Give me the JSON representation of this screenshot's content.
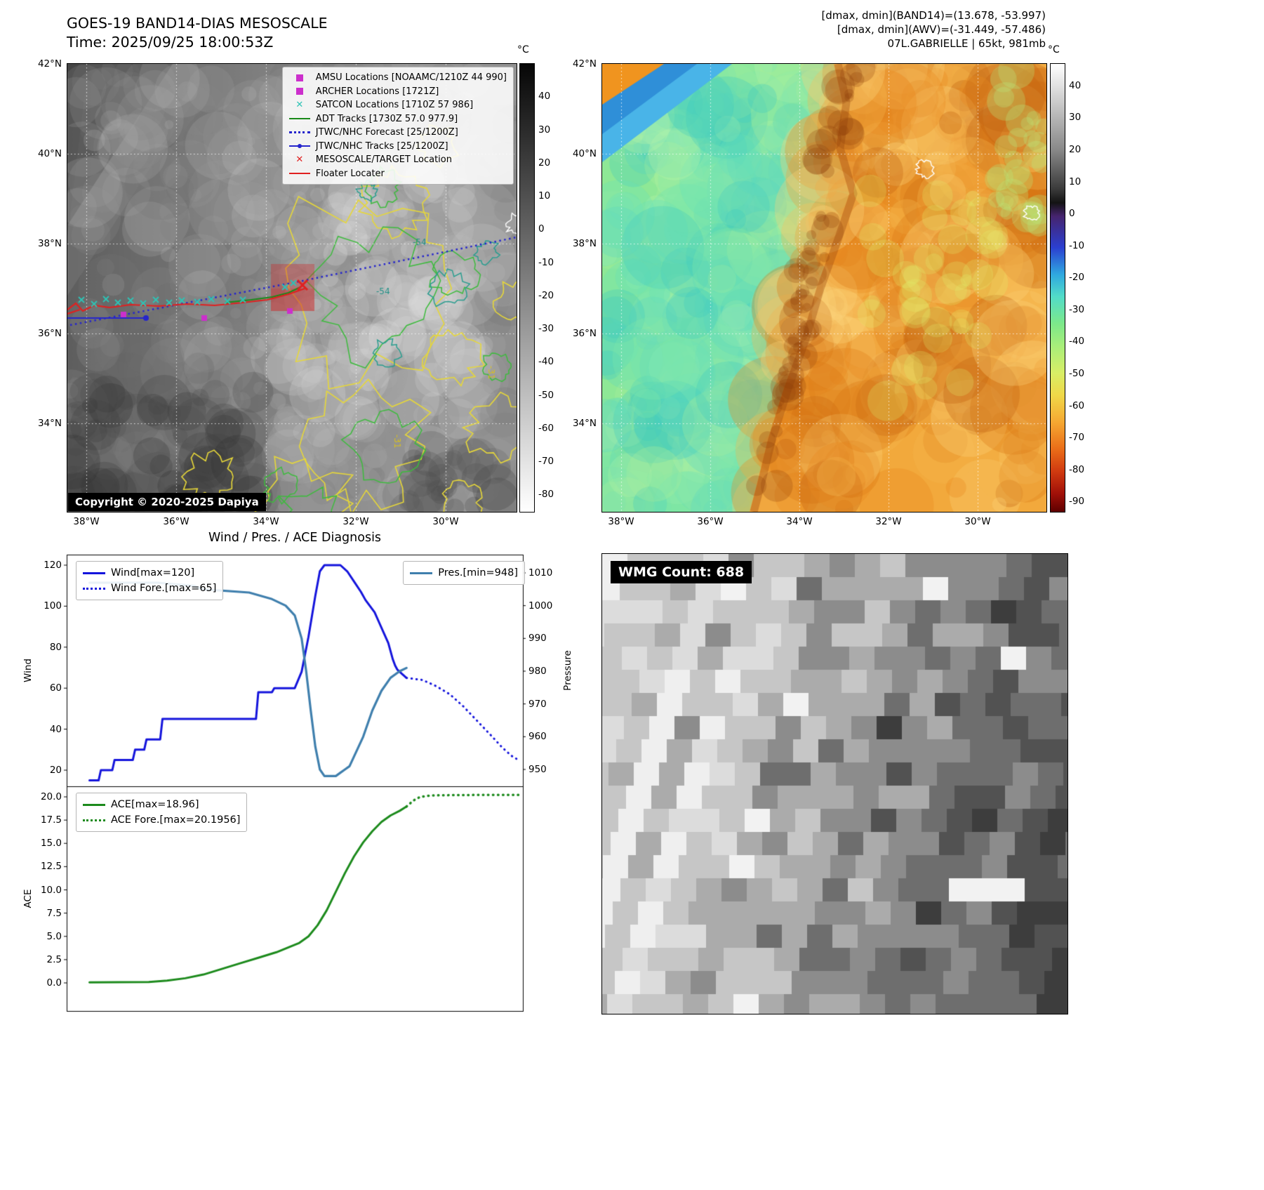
{
  "band14": {
    "title": "GOES-19 BAND14-DIAS MESOSCALE",
    "time_line": "Time: 2025/09/25 18:00:53Z",
    "copyright": "Copyright © 2020-2025 Dapiya",
    "lat_ticks": [
      "42°N",
      "40°N",
      "38°N",
      "36°N",
      "34°N"
    ],
    "lon_ticks": [
      "38°W",
      "36°W",
      "34°W",
      "32°W",
      "30°W"
    ],
    "legend": [
      {
        "label": "AMSU Locations [NOAAMC/1210Z 44 990]",
        "marker": "square",
        "color": "#cc2fcc"
      },
      {
        "label": "ARCHER Locations [1721Z]",
        "marker": "square",
        "color": "#cc2fcc"
      },
      {
        "label": "SATCON Locations [1710Z 57 986]",
        "marker": "x",
        "color": "#2ec4b6"
      },
      {
        "label": "ADT Tracks [1730Z 57.0 977.9]",
        "marker": "line",
        "color": "#1a8a1a"
      },
      {
        "label": "JTWC/NHC Forecast [25/1200Z]",
        "marker": "dotted",
        "color": "#2525cc"
      },
      {
        "label": "JTWC/NHC Tracks [25/1200Z]",
        "marker": "line-dot",
        "color": "#2525cc"
      },
      {
        "label": "MESOSCALE/TARGET Location",
        "marker": "x",
        "color": "#e02020"
      },
      {
        "label": "Floater Locater",
        "marker": "line",
        "color": "#e02020"
      }
    ],
    "contour_labels": [
      "-54",
      "-54",
      "-31",
      "-31"
    ],
    "colorbar": {
      "unit": "°C",
      "tick_values": [
        40,
        30,
        20,
        10,
        0,
        -10,
        -20,
        -30,
        -40,
        -50,
        -60,
        -70,
        -80
      ],
      "tick_labels": [
        "40",
        "30",
        "20",
        "10",
        "0",
        "-10",
        "-20",
        "-30",
        "-40",
        "-50",
        "-60",
        "-70",
        "-80"
      ]
    }
  },
  "awv": {
    "header_lines": [
      "[dmax, dmin](BAND14)=(13.678, -53.997)",
      "[dmax, dmin](AWV)=(-31.449, -57.486)",
      "07L.GABRIELLE | 65kt, 981mb"
    ],
    "lat_ticks": [
      "42°N",
      "40°N",
      "38°N",
      "36°N",
      "34°N"
    ],
    "lon_ticks": [
      "38°W",
      "36°W",
      "34°W",
      "32°W",
      "30°W"
    ],
    "colorbar": {
      "unit": "°C",
      "tick_values": [
        40,
        30,
        20,
        10,
        0,
        -10,
        -20,
        -30,
        -40,
        -50,
        -60,
        -70,
        -80,
        -90
      ],
      "tick_labels": [
        "40",
        "30",
        "20",
        "10",
        "0",
        "-10",
        "-20",
        "-30",
        "-40",
        "-50",
        "-60",
        "-70",
        "-80",
        "-90"
      ]
    }
  },
  "wmg": {
    "label": "WMG Count: 688"
  },
  "chart_data": [
    {
      "type": "line",
      "title": "Wind / Pres. / ACE Diagnosis",
      "ylabel": "Wind",
      "ylabel_right": "Pressure",
      "ylim": [
        12,
        125
      ],
      "ylim_right": [
        945,
        1015
      ],
      "ytick_values": [
        120,
        100,
        80,
        60,
        40,
        20
      ],
      "ytick_labels": [
        "120",
        "100",
        "80",
        "60",
        "40",
        "20"
      ],
      "ytick_right_values": [
        1010,
        1000,
        990,
        980,
        970,
        960,
        950
      ],
      "ytick_right_labels": [
        "1010",
        "1000",
        "990",
        "980",
        "970",
        "960",
        "950"
      ],
      "series": [
        {
          "name": "Wind[max=120]",
          "axis": "left",
          "style": "solid",
          "color": "#1414dc",
          "width": 3,
          "legend": "upper-left",
          "points": [
            [
              0.05,
              15
            ],
            [
              0.07,
              15
            ],
            [
              0.075,
              20
            ],
            [
              0.1,
              20
            ],
            [
              0.105,
              25
            ],
            [
              0.145,
              25
            ],
            [
              0.15,
              30
            ],
            [
              0.17,
              30
            ],
            [
              0.175,
              35
            ],
            [
              0.205,
              35
            ],
            [
              0.21,
              45
            ],
            [
              0.415,
              45
            ],
            [
              0.42,
              58
            ],
            [
              0.45,
              58
            ],
            [
              0.455,
              60
            ],
            [
              0.5,
              60
            ],
            [
              0.515,
              68
            ],
            [
              0.53,
              85
            ],
            [
              0.545,
              105
            ],
            [
              0.555,
              117
            ],
            [
              0.565,
              120
            ],
            [
              0.6,
              120
            ],
            [
              0.615,
              117
            ],
            [
              0.63,
              112
            ],
            [
              0.645,
              107
            ],
            [
              0.655,
              103
            ],
            [
              0.665,
              100
            ],
            [
              0.675,
              97
            ],
            [
              0.685,
              92
            ],
            [
              0.695,
              87
            ],
            [
              0.705,
              82
            ],
            [
              0.71,
              78
            ],
            [
              0.715,
              74
            ],
            [
              0.72,
              71
            ],
            [
              0.725,
              69
            ],
            [
              0.735,
              67
            ],
            [
              0.745,
              65
            ]
          ]
        },
        {
          "name": "Wind Fore.[max=65]",
          "axis": "left",
          "style": "dotted",
          "color": "#1414dc",
          "width": 3,
          "legend": "upper-left",
          "points": [
            [
              0.745,
              65
            ],
            [
              0.78,
              64
            ],
            [
              0.81,
              61
            ],
            [
              0.84,
              57
            ],
            [
              0.87,
              51
            ],
            [
              0.9,
              44
            ],
            [
              0.93,
              37
            ],
            [
              0.955,
              31
            ],
            [
              0.975,
              27
            ],
            [
              0.99,
              25
            ]
          ]
        },
        {
          "name": "Pres.[min=948]",
          "axis": "right",
          "style": "solid",
          "color": "#3f7fad",
          "width": 3.2,
          "legend": "upper-right",
          "points": [
            [
              0.05,
              1007
            ],
            [
              0.2,
              1007
            ],
            [
              0.28,
              1006
            ],
            [
              0.3,
              1005
            ],
            [
              0.4,
              1004
            ],
            [
              0.45,
              1002
            ],
            [
              0.48,
              1000
            ],
            [
              0.5,
              997
            ],
            [
              0.515,
              990
            ],
            [
              0.525,
              980
            ],
            [
              0.535,
              968
            ],
            [
              0.545,
              957
            ],
            [
              0.555,
              950
            ],
            [
              0.565,
              948
            ],
            [
              0.59,
              948
            ],
            [
              0.6,
              949
            ],
            [
              0.61,
              950
            ],
            [
              0.62,
              951
            ],
            [
              0.63,
              954
            ],
            [
              0.65,
              960
            ],
            [
              0.67,
              968
            ],
            [
              0.69,
              974
            ],
            [
              0.71,
              978
            ],
            [
              0.73,
              980
            ],
            [
              0.745,
              981
            ]
          ]
        }
      ]
    },
    {
      "type": "line",
      "ylabel": "ACE",
      "ylim": [
        -3,
        21
      ],
      "ytick_values": [
        20,
        17.5,
        15,
        12.5,
        10,
        7.5,
        5,
        2.5,
        0
      ],
      "ytick_labels": [
        "20.0",
        "17.5",
        "15.0",
        "12.5",
        "10.0",
        "7.5",
        "5.0",
        "2.5",
        "0.0"
      ],
      "series": [
        {
          "name": "ACE[max=18.96]",
          "axis": "left",
          "style": "solid",
          "color": "#1c8a1c",
          "width": 3,
          "legend": "lower-left",
          "points": [
            [
              0.05,
              0.05
            ],
            [
              0.18,
              0.1
            ],
            [
              0.22,
              0.25
            ],
            [
              0.26,
              0.5
            ],
            [
              0.3,
              0.9
            ],
            [
              0.34,
              1.5
            ],
            [
              0.38,
              2.1
            ],
            [
              0.42,
              2.7
            ],
            [
              0.46,
              3.3
            ],
            [
              0.49,
              3.9
            ],
            [
              0.51,
              4.3
            ],
            [
              0.53,
              5.0
            ],
            [
              0.55,
              6.2
            ],
            [
              0.57,
              7.8
            ],
            [
              0.59,
              9.8
            ],
            [
              0.61,
              11.8
            ],
            [
              0.63,
              13.6
            ],
            [
              0.65,
              15.1
            ],
            [
              0.67,
              16.3
            ],
            [
              0.69,
              17.3
            ],
            [
              0.71,
              18.0
            ],
            [
              0.73,
              18.5
            ],
            [
              0.745,
              18.96
            ]
          ]
        },
        {
          "name": "ACE Fore.[max=20.1956]",
          "axis": "left",
          "style": "dotted",
          "color": "#1c8a1c",
          "width": 3.5,
          "legend": "lower-left",
          "points": [
            [
              0.745,
              18.96
            ],
            [
              0.76,
              19.6
            ],
            [
              0.775,
              20.0
            ],
            [
              0.8,
              20.15
            ],
            [
              0.85,
              20.19
            ],
            [
              0.9,
              20.2
            ],
            [
              0.95,
              20.2
            ],
            [
              0.99,
              20.2
            ]
          ]
        }
      ]
    }
  ]
}
